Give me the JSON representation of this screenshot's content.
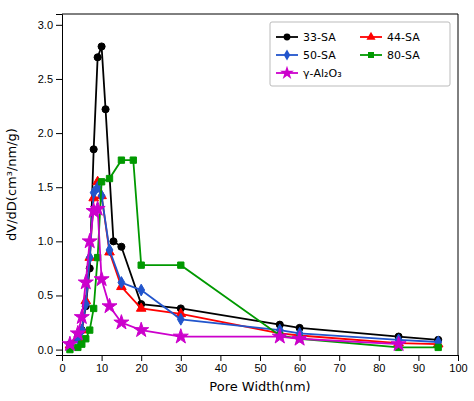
{
  "chart_data": {
    "type": "line",
    "xlabel": "Pore Width(nm)",
    "ylabel": "dV/dD(cm³/nm/g)",
    "xlim": [
      0,
      100
    ],
    "ylim": [
      -0.05,
      3.1
    ],
    "xticks": [
      0,
      10,
      20,
      30,
      40,
      50,
      60,
      70,
      80,
      90,
      100
    ],
    "yticks": [
      {
        "value": 0.0,
        "label": "0.0"
      },
      0.5,
      {
        "value": 1.0,
        "label": "1.0"
      },
      1.5,
      {
        "value": 2.0,
        "label": "2.0"
      },
      2.5,
      {
        "value": 3.0,
        "label": "3.0"
      }
    ],
    "legend": "upper right",
    "series": [
      {
        "name": "33-SA",
        "color": "#000000",
        "marker": "circle",
        "x": [
          2,
          4,
          5,
          6,
          7,
          8,
          9,
          10,
          11,
          13,
          15,
          20,
          30,
          55,
          60,
          85,
          95
        ],
        "values": [
          0.05,
          0.12,
          0.18,
          0.4,
          0.75,
          1.85,
          2.7,
          2.8,
          2.22,
          1.0,
          0.95,
          0.42,
          0.38,
          0.23,
          0.2,
          0.12,
          0.09
        ]
      },
      {
        "name": "44-SA",
        "color": "#ff0000",
        "marker": "triangle",
        "x": [
          2,
          4,
          5,
          6,
          7,
          8,
          9,
          10,
          12,
          15,
          20,
          30,
          55,
          60,
          85,
          95
        ],
        "values": [
          0.04,
          0.1,
          0.18,
          0.45,
          0.85,
          1.4,
          1.55,
          1.42,
          0.9,
          0.58,
          0.38,
          0.33,
          0.15,
          0.13,
          0.06,
          0.05
        ]
      },
      {
        "name": "50-SA",
        "color": "#2255cc",
        "marker": "diamond",
        "x": [
          2,
          4,
          5,
          6,
          7,
          8,
          9,
          10,
          12,
          15,
          20,
          30,
          55,
          60,
          85,
          95
        ],
        "values": [
          0.04,
          0.1,
          0.18,
          0.42,
          0.85,
          1.45,
          1.5,
          1.42,
          0.92,
          0.62,
          0.55,
          0.28,
          0.18,
          0.15,
          0.09,
          0.07
        ]
      },
      {
        "name": "80-SA",
        "color": "#009900",
        "marker": "square",
        "x": [
          2,
          4,
          5,
          6,
          7,
          8,
          9,
          10,
          12,
          15,
          18,
          20,
          30,
          55,
          60,
          85,
          95
        ],
        "values": [
          0.0,
          0.02,
          0.05,
          0.1,
          0.18,
          0.38,
          0.85,
          1.55,
          1.58,
          1.75,
          1.75,
          0.78,
          0.78,
          0.13,
          0.1,
          0.02,
          0.02
        ]
      },
      {
        "name": "γ-Al₂O₃",
        "color": "#cc00cc",
        "marker": "star",
        "x": [
          2,
          4,
          5,
          6,
          7,
          8,
          9,
          10,
          12,
          15,
          20,
          30,
          55,
          60,
          85
        ],
        "values": [
          0.05,
          0.15,
          0.3,
          0.62,
          1.0,
          1.28,
          1.3,
          0.65,
          0.4,
          0.25,
          0.18,
          0.12,
          0.12,
          0.1,
          0.05
        ]
      }
    ]
  }
}
